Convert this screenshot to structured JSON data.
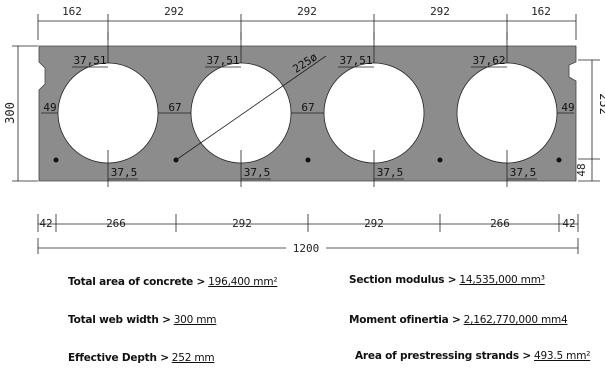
{
  "dimensions": {
    "top": [
      "162",
      "292",
      "292",
      "292",
      "162"
    ],
    "bottom": [
      "42",
      "266",
      "292",
      "292",
      "266",
      "42"
    ],
    "overall": "1200",
    "left_height": "300",
    "right_height": "252",
    "strand_height": "48"
  },
  "section_labels": {
    "top_covers": [
      "37,51",
      "37,51",
      "37,51",
      "37,62"
    ],
    "bottom_covers": [
      "37,5",
      "37,5",
      "37,5",
      "37,5"
    ],
    "edge_web_left": "49",
    "edge_web_right": "49",
    "inner_webs": [
      "67",
      "67"
    ],
    "hole_diameter": "225ø"
  },
  "properties": {
    "total_area_label": "Total area of concrete  >",
    "total_area_value": "196,400 mm²",
    "section_modulus_label": "Section modulus  >",
    "section_modulus_value": "14,535,000 mm³",
    "web_width_label": "Total web width >",
    "web_width_value": "300 mm",
    "inertia_label": "Moment ofinertia >",
    "inertia_value": "2,162,770,000 mm4",
    "depth_label": "Effective Depth >",
    "depth_value": "252 mm",
    "strands_label": "Area of prestressing strands >",
    "strands_value": "493.5 mm²"
  },
  "colors": {
    "concrete": "#8c8c8c",
    "hole": "#ffffff",
    "line": "#222222"
  }
}
